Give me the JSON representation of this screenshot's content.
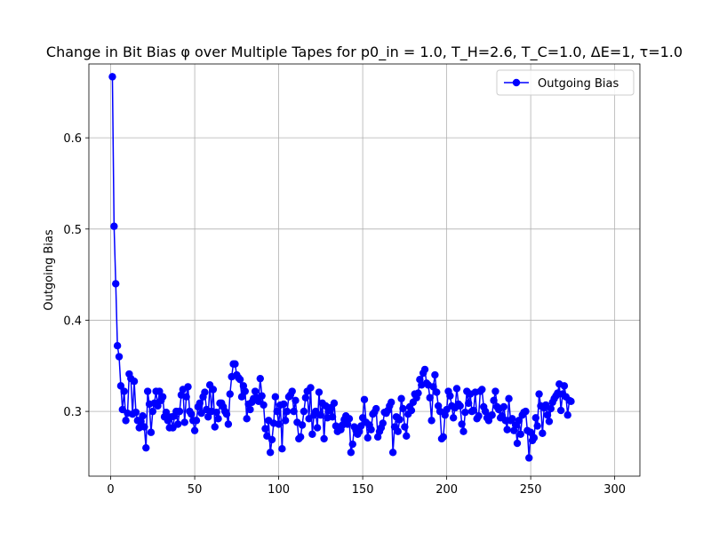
{
  "chart_data": {
    "type": "line",
    "title": "Change in Bit Bias φ over Multiple Tapes for p0_in = 1.0, T_H=2.6, T_C=1.0, ΔE=1, τ=1.0",
    "xlabel": "",
    "ylabel": "Outgoing Bias",
    "xlim": [
      -13,
      315
    ],
    "ylim": [
      0.229,
      0.681
    ],
    "x_ticks": [
      0,
      50,
      100,
      150,
      200,
      250,
      300
    ],
    "y_ticks": [
      0.3,
      0.4,
      0.5,
      0.6
    ],
    "y_tick_labels": [
      "0.3",
      "0.4",
      "0.5",
      "0.6"
    ],
    "grid": true,
    "legend_position": "upper-right",
    "series": [
      {
        "name": "Outgoing Bias",
        "color": "#0000ff",
        "marker": "circle",
        "x_start": 1,
        "x_step": 1,
        "values": [
          0.667,
          0.503,
          0.44,
          0.372,
          0.36,
          0.328,
          0.302,
          0.322,
          0.29,
          0.298,
          0.341,
          0.336,
          0.297,
          0.333,
          0.299,
          0.29,
          0.282,
          0.289,
          0.295,
          0.283,
          0.26,
          0.322,
          0.308,
          0.277,
          0.3,
          0.309,
          0.322,
          0.306,
          0.322,
          0.312,
          0.316,
          0.294,
          0.299,
          0.29,
          0.282,
          0.294,
          0.282,
          0.295,
          0.3,
          0.286,
          0.3,
          0.318,
          0.324,
          0.288,
          0.316,
          0.327,
          0.3,
          0.297,
          0.29,
          0.279,
          0.29,
          0.305,
          0.309,
          0.298,
          0.316,
          0.321,
          0.302,
          0.294,
          0.329,
          0.3,
          0.324,
          0.283,
          0.299,
          0.292,
          0.309,
          0.309,
          0.305,
          0.3,
          0.297,
          0.286,
          0.319,
          0.338,
          0.352,
          0.352,
          0.34,
          0.337,
          0.335,
          0.316,
          0.328,
          0.322,
          0.292,
          0.308,
          0.302,
          0.31,
          0.314,
          0.322,
          0.315,
          0.311,
          0.336,
          0.317,
          0.307,
          0.281,
          0.273,
          0.29,
          0.255,
          0.269,
          0.287,
          0.316,
          0.3,
          0.286,
          0.307,
          0.259,
          0.308,
          0.29,
          0.3,
          0.316,
          0.318,
          0.322,
          0.3,
          0.312,
          0.288,
          0.27,
          0.272,
          0.285,
          0.3,
          0.315,
          0.322,
          0.292,
          0.326,
          0.275,
          0.296,
          0.3,
          0.282,
          0.321,
          0.296,
          0.309,
          0.27,
          0.306,
          0.293,
          0.301,
          0.304,
          0.294,
          0.309,
          0.284,
          0.278,
          0.283,
          0.28,
          0.285,
          0.291,
          0.295,
          0.286,
          0.292,
          0.255,
          0.264,
          0.283,
          0.279,
          0.275,
          0.278,
          0.284,
          0.293,
          0.313,
          0.288,
          0.271,
          0.285,
          0.28,
          0.297,
          0.299,
          0.303,
          0.272,
          0.278,
          0.282,
          0.287,
          0.299,
          0.298,
          0.301,
          0.306,
          0.31,
          0.255,
          0.283,
          0.294,
          0.278,
          0.291,
          0.314,
          0.303,
          0.283,
          0.273,
          0.297,
          0.305,
          0.301,
          0.31,
          0.319,
          0.315,
          0.32,
          0.335,
          0.329,
          0.342,
          0.346,
          0.331,
          0.329,
          0.315,
          0.29,
          0.327,
          0.34,
          0.321,
          0.306,
          0.3,
          0.27,
          0.272,
          0.296,
          0.302,
          0.322,
          0.317,
          0.306,
          0.293,
          0.304,
          0.325,
          0.308,
          0.306,
          0.286,
          0.278,
          0.299,
          0.322,
          0.309,
          0.319,
          0.3,
          0.301,
          0.321,
          0.292,
          0.295,
          0.322,
          0.324,
          0.305,
          0.3,
          0.293,
          0.29,
          0.295,
          0.296,
          0.312,
          0.322,
          0.305,
          0.302,
          0.293,
          0.295,
          0.305,
          0.29,
          0.28,
          0.314,
          0.29,
          0.292,
          0.279,
          0.285,
          0.265,
          0.29,
          0.275,
          0.296,
          0.299,
          0.3,
          0.279,
          0.249,
          0.277,
          0.268,
          0.271,
          0.293,
          0.284,
          0.319,
          0.306,
          0.276,
          0.304,
          0.307,
          0.296,
          0.289,
          0.303,
          0.31,
          0.314,
          0.317,
          0.32,
          0.33,
          0.301,
          0.319,
          0.328,
          0.316,
          0.296,
          0.312,
          0.311
        ]
      }
    ]
  }
}
